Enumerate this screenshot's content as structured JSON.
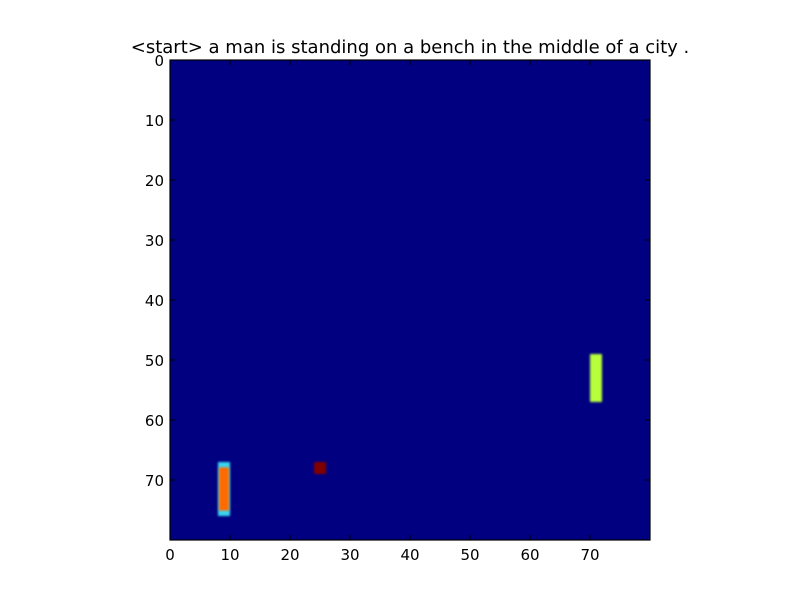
{
  "chart_data": {
    "type": "heatmap",
    "title": "<start> a man is standing on a bench in the middle of a city .",
    "xlabel": "",
    "ylabel": "",
    "xlim": [
      0,
      80
    ],
    "ylim": [
      80,
      0
    ],
    "x_ticks": [
      "0",
      "10",
      "20",
      "30",
      "40",
      "50",
      "60",
      "70"
    ],
    "y_ticks": [
      "0",
      "10",
      "20",
      "30",
      "40",
      "50",
      "60",
      "70"
    ],
    "grid": false,
    "colormap": "jet",
    "background_value": 0.0,
    "regions": [
      {
        "name": "bar-left",
        "x": [
          8,
          10
        ],
        "y": [
          67,
          76
        ],
        "value": 0.8,
        "edge_value": 0.35
      },
      {
        "name": "dot-middle",
        "x": [
          24,
          26
        ],
        "y": [
          67,
          69
        ],
        "value": 1.0
      },
      {
        "name": "bar-right",
        "x": [
          70,
          72
        ],
        "y": [
          49,
          57
        ],
        "value": 0.62
      }
    ],
    "colors": {
      "background": "#000080",
      "bar-left": "#ff6a00",
      "bar-left-edge": "#3ad6ee",
      "dot-middle": "#800000",
      "bar-right": "#b8ff3a",
      "frame": "#000000"
    }
  }
}
